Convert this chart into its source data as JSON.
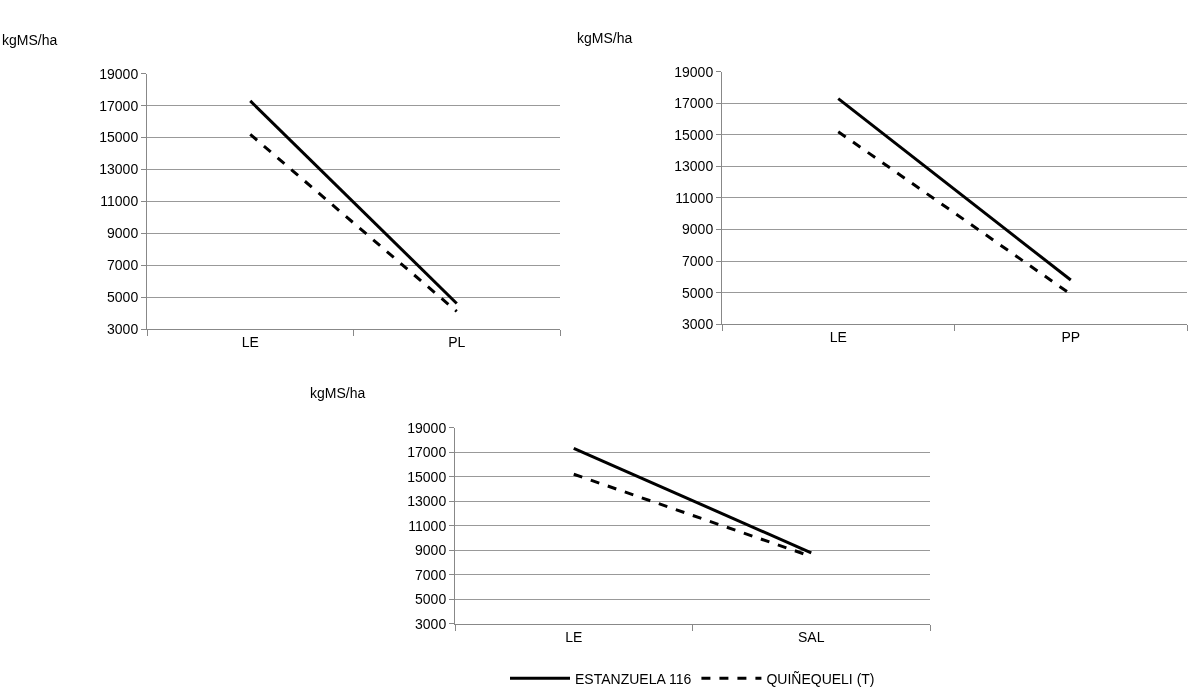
{
  "chart_data": [
    {
      "type": "line",
      "ylabel": "kgMS/ha",
      "categories": [
        "LE",
        "PL"
      ],
      "ylim": [
        3000,
        19000
      ],
      "yticks": [
        3000,
        5000,
        7000,
        9000,
        11000,
        13000,
        15000,
        17000,
        19000
      ],
      "grid": "y",
      "legend": false,
      "marker": "none",
      "series": [
        {
          "color": "#000000",
          "line_style": "solid",
          "values": [
            17300,
            4600
          ]
        },
        {
          "color": "#000000",
          "line_style": "dashed",
          "values": [
            15200,
            4100
          ]
        }
      ]
    },
    {
      "type": "line",
      "ylabel": "kgMS/ha",
      "categories": [
        "LE",
        "PP"
      ],
      "ylim": [
        3000,
        19000
      ],
      "yticks": [
        3000,
        5000,
        7000,
        9000,
        11000,
        13000,
        15000,
        17000,
        19000
      ],
      "grid": "y",
      "legend": false,
      "marker": "none",
      "series": [
        {
          "color": "#000000",
          "line_style": "solid",
          "values": [
            17300,
            5800
          ]
        },
        {
          "color": "#000000",
          "line_style": "dashed",
          "values": [
            15200,
            4900
          ]
        }
      ]
    },
    {
      "type": "line",
      "ylabel": "kgMS/ha",
      "categories": [
        "LE",
        "SAL"
      ],
      "ylim": [
        3000,
        19000
      ],
      "yticks": [
        3000,
        5000,
        7000,
        9000,
        11000,
        13000,
        15000,
        17000,
        19000
      ],
      "grid": "y",
      "legend": "bottom",
      "marker": "none",
      "series": [
        {
          "name": "ESTANZUELA 116",
          "color": "#000000",
          "line_style": "solid",
          "values": [
            17300,
            8800
          ]
        },
        {
          "name": "QUIÑEQUELI (T)",
          "color": "#000000",
          "line_style": "dashed",
          "values": [
            15200,
            8500
          ]
        }
      ]
    }
  ]
}
